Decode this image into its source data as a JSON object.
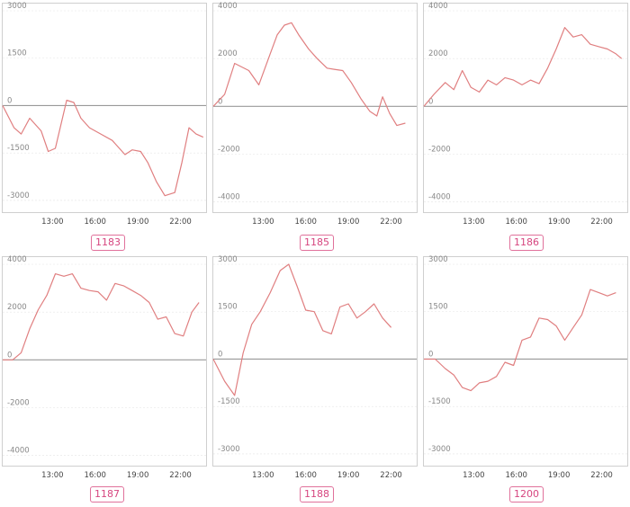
{
  "chart_data": [
    {
      "type": "line",
      "label": "1183",
      "y_ticks": [
        3000,
        1500,
        0,
        -1500,
        -3000
      ],
      "ylim": [
        -3200,
        3000
      ],
      "x_ticks": [
        "13:00",
        "16:00",
        "19:00",
        "22:00"
      ],
      "x_tick_hours": [
        13,
        16,
        19,
        22
      ],
      "xlim": [
        9.5,
        23.8
      ],
      "grid": true,
      "series": [
        {
          "hours": [
            9.5,
            10.3,
            10.8,
            11.4,
            12.2,
            12.7,
            13.2,
            14.0,
            14.5,
            15.0,
            15.6,
            16.4,
            17.2,
            18.1,
            18.6,
            19.2,
            19.7,
            20.3,
            20.9,
            21.6,
            22.1,
            22.6,
            23.1,
            23.6
          ],
          "values": [
            0,
            -700,
            -900,
            -400,
            -800,
            -1450,
            -1350,
            170,
            100,
            -400,
            -700,
            -900,
            -1100,
            -1550,
            -1400,
            -1450,
            -1800,
            -2400,
            -2850,
            -2750,
            -1800,
            -700,
            -900,
            -1000
          ]
        }
      ]
    },
    {
      "type": "line",
      "label": "1185",
      "y_ticks": [
        4000,
        2000,
        0,
        -2000,
        -4000
      ],
      "ylim": [
        -4200,
        4000
      ],
      "x_ticks": [
        "13:00",
        "16:00",
        "19:00",
        "22:00"
      ],
      "x_tick_hours": [
        13,
        16,
        19,
        22
      ],
      "xlim": [
        9.5,
        23.8
      ],
      "grid": true,
      "series": [
        {
          "hours": [
            9.5,
            10.3,
            11.0,
            12.0,
            12.7,
            13.5,
            14.0,
            14.5,
            15.0,
            15.5,
            16.2,
            16.8,
            17.5,
            18.0,
            18.6,
            19.2,
            19.9,
            20.5,
            21.0,
            21.4,
            21.9,
            22.4,
            23.0
          ],
          "values": [
            0,
            500,
            1800,
            1500,
            900,
            2200,
            3000,
            3400,
            3500,
            3000,
            2400,
            2000,
            1600,
            1550,
            1500,
            1000,
            300,
            -200,
            -400,
            400,
            -300,
            -800,
            -700
          ]
        }
      ]
    },
    {
      "type": "line",
      "label": "1186",
      "y_ticks": [
        4000,
        2000,
        0,
        -2000,
        -4000
      ],
      "ylim": [
        -4200,
        4000
      ],
      "x_ticks": [
        "13:00",
        "16:00",
        "19:00",
        "22:00"
      ],
      "x_tick_hours": [
        13,
        16,
        19,
        22
      ],
      "xlim": [
        9.5,
        23.8
      ],
      "grid": true,
      "series": [
        {
          "hours": [
            9.5,
            10.2,
            11.0,
            11.6,
            12.2,
            12.8,
            13.4,
            14.0,
            14.6,
            15.2,
            15.8,
            16.4,
            17.0,
            17.6,
            18.2,
            18.8,
            19.4,
            20.0,
            20.6,
            21.2,
            21.8,
            22.4,
            23.0,
            23.4
          ],
          "values": [
            0,
            500,
            1000,
            700,
            1500,
            800,
            600,
            1100,
            900,
            1200,
            1100,
            900,
            1100,
            950,
            1600,
            2400,
            3300,
            2900,
            3000,
            2600,
            2500,
            2400,
            2200,
            2000
          ]
        }
      ]
    },
    {
      "type": "line",
      "label": "1187",
      "y_ticks": [
        4000,
        2000,
        0,
        -2000,
        -4000
      ],
      "ylim": [
        -4200,
        4000
      ],
      "x_ticks": [
        "13:00",
        "16:00",
        "19:00",
        "22:00"
      ],
      "x_tick_hours": [
        13,
        16,
        19,
        22
      ],
      "xlim": [
        9.5,
        23.8
      ],
      "grid": true,
      "series": [
        {
          "hours": [
            9.5,
            10.2,
            10.8,
            11.4,
            12.0,
            12.6,
            13.2,
            13.8,
            14.4,
            15.0,
            15.6,
            16.2,
            16.8,
            17.4,
            18.0,
            18.6,
            19.2,
            19.8,
            20.4,
            21.0,
            21.6,
            22.2,
            22.8,
            23.3
          ],
          "values": [
            0,
            0,
            300,
            1300,
            2100,
            2700,
            3600,
            3500,
            3600,
            3000,
            2900,
            2850,
            2500,
            3200,
            3100,
            2900,
            2700,
            2400,
            1700,
            1800,
            1100,
            1000,
            2000,
            2400
          ]
        }
      ]
    },
    {
      "type": "line",
      "label": "1188",
      "y_ticks": [
        3000,
        1500,
        0,
        -1500,
        -3000
      ],
      "ylim": [
        -3200,
        3000
      ],
      "x_ticks": [
        "13:00",
        "16:00",
        "19:00",
        "22:00"
      ],
      "x_tick_hours": [
        13,
        16,
        19,
        22
      ],
      "xlim": [
        9.5,
        23.8
      ],
      "grid": true,
      "series": [
        {
          "hours": [
            9.5,
            10.3,
            11.0,
            11.6,
            12.2,
            12.8,
            13.5,
            14.2,
            14.8,
            15.4,
            16.0,
            16.6,
            17.2,
            17.8,
            18.4,
            19.0,
            19.6,
            20.2,
            20.8,
            21.4,
            22.0
          ],
          "values": [
            0,
            -700,
            -1150,
            200,
            1100,
            1500,
            2100,
            2800,
            3000,
            2300,
            1550,
            1500,
            900,
            800,
            1650,
            1750,
            1300,
            1500,
            1750,
            1300,
            1000
          ]
        }
      ]
    },
    {
      "type": "line",
      "label": "1200",
      "y_ticks": [
        3000,
        1500,
        0,
        -1500,
        -3000
      ],
      "ylim": [
        -3200,
        3000
      ],
      "x_ticks": [
        "13:00",
        "16:00",
        "19:00",
        "22:00"
      ],
      "x_tick_hours": [
        13,
        16,
        19,
        22
      ],
      "xlim": [
        9.5,
        23.8
      ],
      "grid": true,
      "series": [
        {
          "hours": [
            9.5,
            10.3,
            11.0,
            11.6,
            12.2,
            12.8,
            13.4,
            14.0,
            14.6,
            15.2,
            15.8,
            16.4,
            17.0,
            17.6,
            18.2,
            18.8,
            19.4,
            20.0,
            20.6,
            21.2,
            21.8,
            22.4,
            23.0
          ],
          "values": [
            0,
            0,
            -300,
            -500,
            -900,
            -1000,
            -750,
            -700,
            -550,
            -100,
            -200,
            600,
            700,
            1300,
            1250,
            1050,
            600,
            1000,
            1400,
            2200,
            2100,
            2000,
            2100
          ]
        }
      ]
    }
  ]
}
